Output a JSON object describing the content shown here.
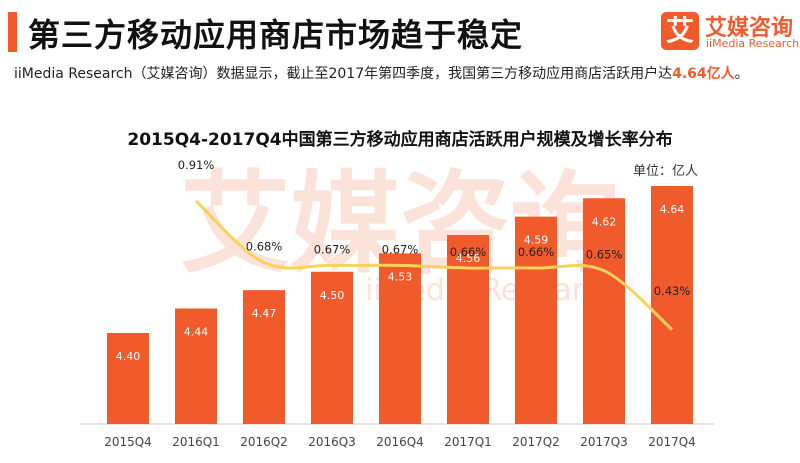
{
  "header": {
    "title": "第三方移动应用商店市场趋于稳定",
    "subtitle_prefix": "iiMedia  Research（艾媒咨询）数据显示，截止至2017年第四季度，我国第三方移动应用商店活跃用户达",
    "subtitle_highlight": "4.64亿人",
    "subtitle_suffix": "。"
  },
  "logo": {
    "mark": "艾",
    "name_cn": "艾媒咨询",
    "name_en": "iiMedia Research"
  },
  "watermark": {
    "cn": "艾媒咨询",
    "en": "iiMedia Research"
  },
  "colors": {
    "accent": "#f15a2a",
    "bar": "#f15a2a",
    "line": "#fad15a",
    "axis": "#c8c8c8",
    "watermark": "#fbe3d9"
  },
  "chart_data": {
    "type": "bar",
    "title": "2015Q4-2017Q4中国第三方移动应用商店活跃用户规模及增长率分布",
    "unit": "单位：亿人",
    "categories": [
      "2015Q4",
      "2016Q1",
      "2016Q2",
      "2016Q3",
      "2016Q4",
      "2017Q1",
      "2017Q2",
      "2017Q3",
      "2017Q4"
    ],
    "series": [
      {
        "values": [
          4.4,
          4.44,
          4.47,
          4.5,
          4.53,
          4.56,
          4.59,
          4.62,
          4.64
        ]
      },
      {
        "values": [
          null,
          0.91,
          0.68,
          0.67,
          0.67,
          0.66,
          0.66,
          0.65,
          0.43
        ]
      }
    ],
    "value_labels": [
      "4.40",
      "4.44",
      "4.47",
      "4.50",
      "4.53",
      "4.56",
      "4.59",
      "4.62",
      "4.64"
    ],
    "rate_labels": [
      "",
      "0.91%",
      "0.68%",
      "0.67%",
      "0.67%",
      "0.66%",
      "0.66%",
      "0.65%",
      "0.43%"
    ],
    "grid": false
  }
}
